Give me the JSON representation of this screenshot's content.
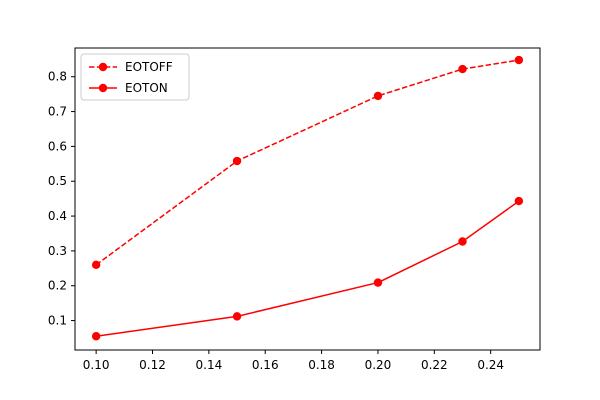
{
  "chart_data": {
    "type": "line",
    "title": "",
    "xlabel": "",
    "ylabel": "",
    "xlim": [
      0.0925,
      0.2575
    ],
    "ylim": [
      0.0155,
      0.8825
    ],
    "x_ticks": [
      0.1,
      0.12,
      0.14,
      0.16,
      0.18,
      0.2,
      0.22,
      0.24
    ],
    "x_tick_labels": [
      "0.10",
      "0.12",
      "0.14",
      "0.16",
      "0.18",
      "0.20",
      "0.22",
      "0.24"
    ],
    "y_ticks": [
      0.1,
      0.2,
      0.3,
      0.4,
      0.5,
      0.6,
      0.7,
      0.8
    ],
    "y_tick_labels": [
      "0.1",
      "0.2",
      "0.3",
      "0.4",
      "0.5",
      "0.6",
      "0.7",
      "0.8"
    ],
    "grid": false,
    "legend_position": "top-left",
    "x": [
      0.1,
      0.15,
      0.2,
      0.23,
      0.25
    ],
    "series": [
      {
        "name": "EOTOFF",
        "values": [
          0.26,
          0.558,
          0.745,
          0.822,
          0.848
        ],
        "color": "#ff0000",
        "line_style": "dashed",
        "marker": "circle"
      },
      {
        "name": "EOTON",
        "values": [
          0.055,
          0.112,
          0.209,
          0.327,
          0.443
        ],
        "color": "#ff0000",
        "line_style": "solid",
        "marker": "circle"
      }
    ]
  }
}
